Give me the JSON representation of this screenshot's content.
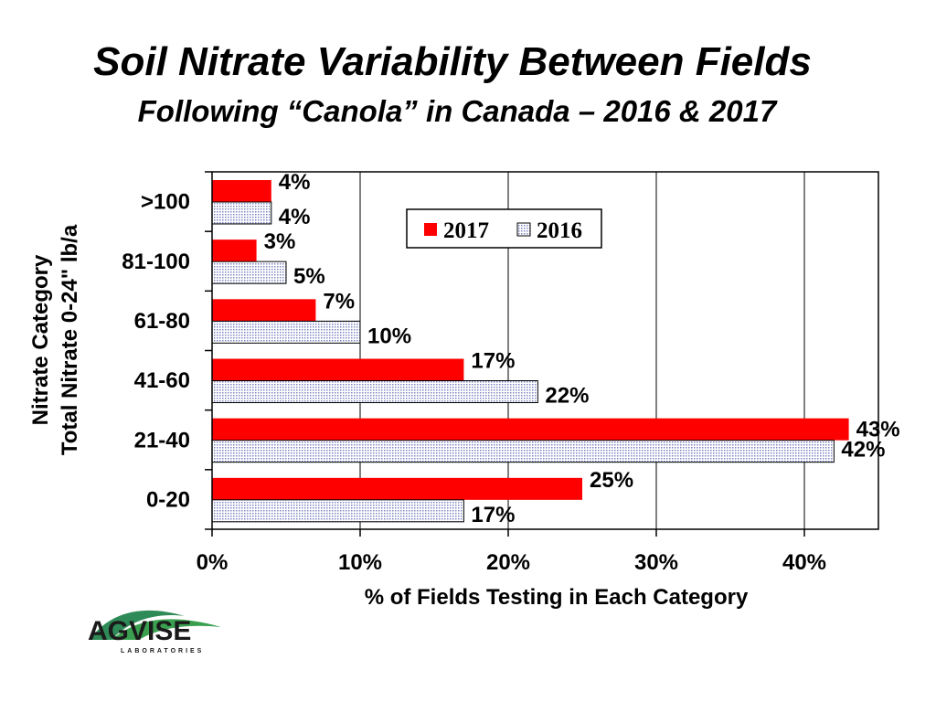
{
  "title": "Soil Nitrate Variability Between Fields",
  "subtitle": "Following “Canola” in Canada – 2016 & 2017",
  "logo": {
    "name": "AGVISE",
    "tagline": "LABORATORIES"
  },
  "chart_data": {
    "type": "bar",
    "orientation": "horizontal",
    "categories": [
      ">100",
      "81-100",
      "61-80",
      "41-60",
      "21-40",
      "0-20"
    ],
    "series": [
      {
        "name": "2017",
        "values": [
          4,
          3,
          7,
          17,
          43,
          25
        ],
        "labels": [
          "4%",
          "3%",
          "7%",
          "17%",
          "43%",
          "25%"
        ],
        "color": "#ff0000"
      },
      {
        "name": "2016",
        "values": [
          4,
          5,
          10,
          22,
          42,
          17
        ],
        "labels": [
          "4%",
          "5%",
          "10%",
          "22%",
          "42%",
          "17%"
        ],
        "color": "#dfe3f2"
      }
    ],
    "xlabel": "% of Fields Testing in Each Category",
    "ylabel": [
      "Nitrate Category",
      "Total Nitrate 0-24\" lb/a"
    ],
    "xlim": [
      0,
      45
    ],
    "xticks": [
      0,
      10,
      20,
      30,
      40
    ],
    "xtick_labels": [
      "0%",
      "10%",
      "20%",
      "30%",
      "40%"
    ],
    "grid": "vertical",
    "legend": "top-right"
  }
}
